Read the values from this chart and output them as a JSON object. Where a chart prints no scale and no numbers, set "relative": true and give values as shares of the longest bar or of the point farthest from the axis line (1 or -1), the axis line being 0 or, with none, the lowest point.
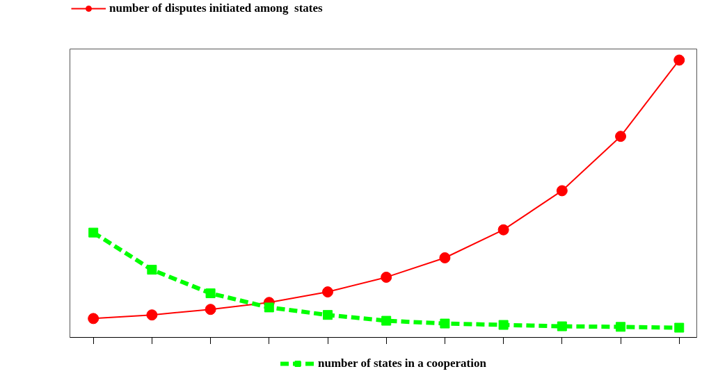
{
  "chart_data": {
    "type": "line",
    "relative": true,
    "categories": [
      null,
      null,
      null,
      null,
      null,
      null,
      null,
      null,
      null,
      null,
      null
    ],
    "series": [
      {
        "name": "number of disputes initiated among  states",
        "color": "#ff0000",
        "marker": "circle",
        "line_style": "solid",
        "values": [
          0.068,
          0.081,
          0.101,
          0.126,
          0.164,
          0.217,
          0.287,
          0.388,
          0.529,
          0.725,
          1
        ]
      },
      {
        "name": "number of states in a cooperation",
        "color": "#00ff00",
        "marker": "square",
        "line_style": "dashed",
        "values": [
          0.378,
          0.244,
          0.159,
          0.108,
          0.081,
          0.06,
          0.05,
          0.045,
          0.04,
          0.038,
          0.035
        ]
      }
    ],
    "legend": "top"
  }
}
